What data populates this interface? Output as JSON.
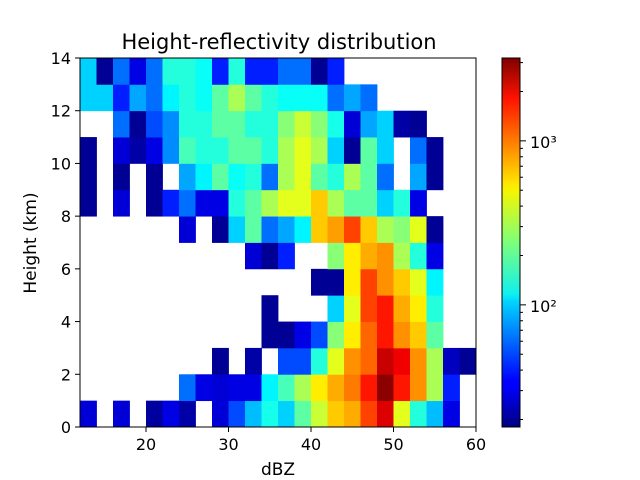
{
  "chart_data": {
    "type": "heatmap",
    "title": "Height-reflectivity distribution",
    "xlabel": "dBZ",
    "ylabel": "Height (km)",
    "xlim": [
      12,
      60
    ],
    "ylim": [
      0,
      14
    ],
    "x_bin_width": 2,
    "y_bin_width": 1,
    "x_bin_starts": [
      12,
      14,
      16,
      18,
      20,
      22,
      24,
      26,
      28,
      30,
      32,
      34,
      36,
      38,
      40,
      42,
      44,
      46,
      48,
      50,
      52,
      54,
      56,
      58
    ],
    "y_bin_starts": [
      0,
      1,
      2,
      3,
      4,
      5,
      6,
      7,
      8,
      9,
      10,
      11,
      12,
      13
    ],
    "xticks": [
      "20",
      "30",
      "40",
      "50",
      "60"
    ],
    "yticks": [
      "0",
      "2",
      "4",
      "6",
      "8",
      "10",
      "12",
      "14"
    ],
    "colormap": "jet",
    "color_scale": "log",
    "colorbar": {
      "vmin": 18,
      "vmax": 3200,
      "ticks": [
        100,
        1000
      ],
      "tick_labels": [
        "10²",
        "10³"
      ]
    },
    "rows": [
      {
        "y": 0,
        "counts": [
          28,
          0,
          28,
          0,
          21,
          30,
          22,
          0,
          28,
          50,
          90,
          140,
          100,
          200,
          350,
          600,
          700,
          1200,
          2000,
          400,
          150,
          90,
          30,
          0
        ]
      },
      {
        "y": 1,
        "counts": [
          0,
          0,
          0,
          0,
          0,
          0,
          60,
          30,
          28,
          30,
          30,
          120,
          180,
          300,
          500,
          700,
          900,
          1500,
          3000,
          1500,
          800,
          300,
          40,
          0
        ]
      },
      {
        "y": 2,
        "counts": [
          0,
          0,
          0,
          0,
          0,
          0,
          0,
          0,
          20,
          0,
          22,
          0,
          50,
          50,
          150,
          400,
          800,
          1000,
          2200,
          1800,
          800,
          300,
          25,
          20
        ]
      },
      {
        "y": 3,
        "counts": [
          0,
          0,
          0,
          0,
          0,
          0,
          0,
          0,
          0,
          0,
          0,
          20,
          20,
          30,
          50,
          250,
          500,
          1000,
          1500,
          800,
          600,
          200,
          0,
          0
        ]
      },
      {
        "y": 4,
        "counts": [
          0,
          0,
          0,
          0,
          0,
          0,
          0,
          0,
          0,
          0,
          0,
          20,
          0,
          0,
          0,
          100,
          400,
          1200,
          1500,
          700,
          500,
          150,
          0,
          0
        ]
      },
      {
        "y": 5,
        "counts": [
          0,
          0,
          0,
          0,
          0,
          0,
          0,
          0,
          0,
          0,
          0,
          0,
          0,
          0,
          20,
          20,
          500,
          1200,
          800,
          600,
          400,
          120,
          0,
          0
        ]
      },
      {
        "y": 6,
        "counts": [
          0,
          0,
          0,
          0,
          0,
          0,
          0,
          0,
          0,
          0,
          28,
          20,
          40,
          0,
          0,
          250,
          500,
          700,
          800,
          300,
          150,
          30,
          0,
          0
        ]
      },
      {
        "y": 7,
        "counts": [
          0,
          0,
          0,
          0,
          0,
          0,
          28,
          0,
          20,
          100,
          200,
          60,
          80,
          120,
          600,
          750,
          1200,
          600,
          300,
          250,
          400,
          20,
          0,
          0
        ]
      },
      {
        "y": 8,
        "counts": [
          20,
          0,
          28,
          0,
          20,
          40,
          60,
          30,
          30,
          150,
          200,
          300,
          400,
          400,
          600,
          300,
          200,
          200,
          100,
          150,
          30,
          0,
          0,
          0
        ]
      },
      {
        "y": 9,
        "counts": [
          20,
          0,
          20,
          0,
          20,
          0,
          80,
          120,
          200,
          130,
          150,
          60,
          300,
          400,
          200,
          150,
          300,
          200,
          60,
          0,
          80,
          20,
          0,
          0
        ]
      },
      {
        "y": 10,
        "counts": [
          20,
          0,
          28,
          22,
          30,
          70,
          180,
          150,
          150,
          200,
          200,
          150,
          300,
          400,
          300,
          100,
          20,
          200,
          100,
          0,
          60,
          20,
          0,
          0
        ]
      },
      {
        "y": 11,
        "counts": [
          0,
          0,
          60,
          20,
          50,
          70,
          150,
          150,
          200,
          200,
          150,
          150,
          250,
          350,
          250,
          140,
          28,
          80,
          100,
          22,
          20,
          0,
          0,
          0
        ]
      },
      {
        "y": 12,
        "counts": [
          100,
          100,
          40,
          80,
          60,
          120,
          150,
          130,
          200,
          300,
          200,
          150,
          130,
          130,
          130,
          60,
          80,
          60,
          0,
          0,
          0,
          0,
          0,
          0
        ]
      },
      {
        "y": 13,
        "counts": [
          100,
          20,
          60,
          30,
          60,
          150,
          150,
          130,
          40,
          150,
          40,
          40,
          60,
          60,
          20,
          40,
          0,
          0,
          0,
          0,
          0,
          0,
          0,
          0
        ]
      }
    ]
  }
}
